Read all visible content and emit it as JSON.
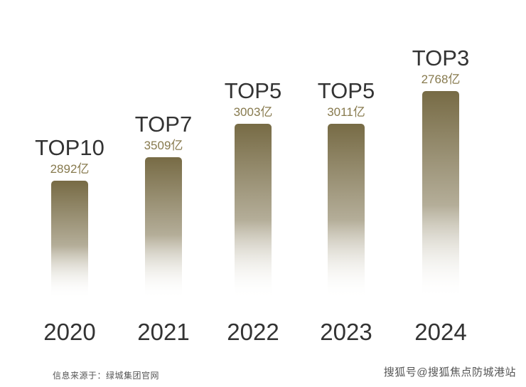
{
  "chart_data": {
    "type": "bar",
    "categories": [
      "2020",
      "2021",
      "2022",
      "2023",
      "2024"
    ],
    "values": [
      2892,
      3509,
      3003,
      3011,
      2768
    ],
    "value_labels": [
      "2892亿",
      "3509亿",
      "3003亿",
      "3011亿",
      "2768亿"
    ],
    "rank_labels": [
      "TOP10",
      "TOP7",
      "TOP5",
      "TOP5",
      "TOP3"
    ],
    "rank_numbers": [
      10,
      7,
      5,
      5,
      3
    ],
    "title": "",
    "xlabel": "",
    "ylabel": "",
    "grid": false,
    "legend": "none",
    "colors": {
      "bar_top": "#776b45",
      "bar_fade": "#ffffff",
      "value_label": "#877a4e",
      "rank_label": "#333333",
      "year_label": "#333333"
    }
  },
  "footer": {
    "source": "信息来源于：绿城集团官网",
    "watermark": "搜狐号@搜狐焦点防城港站"
  }
}
